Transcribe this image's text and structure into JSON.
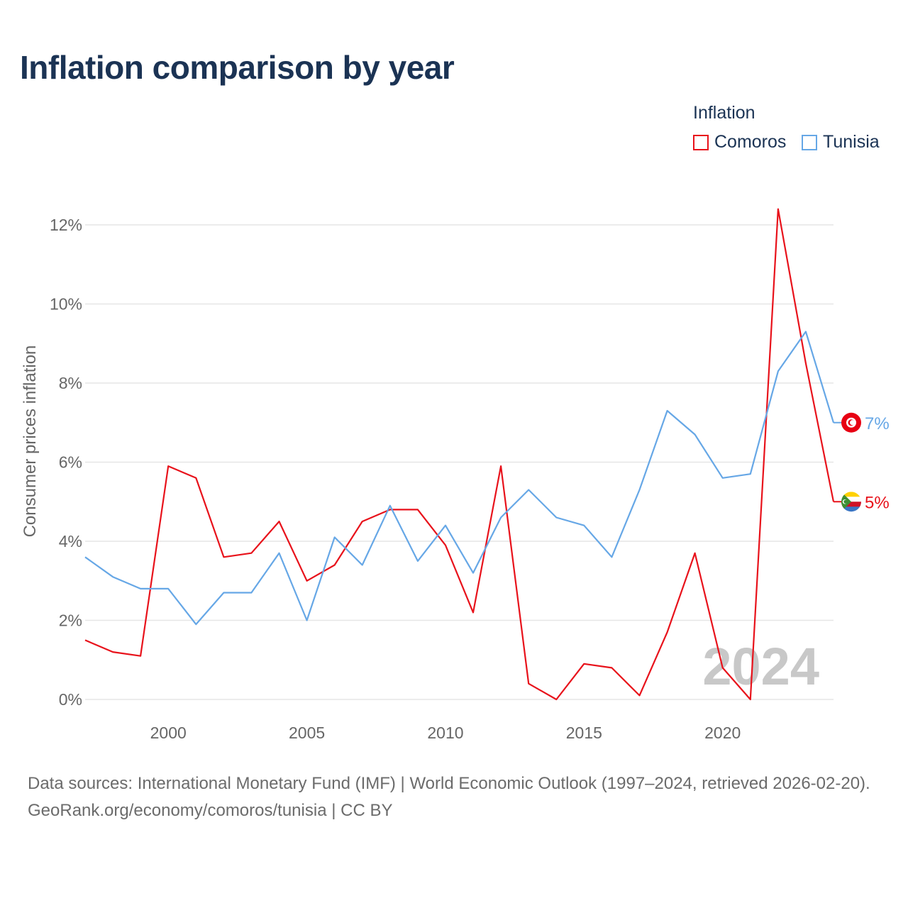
{
  "title": "Inflation comparison by year",
  "legend": {
    "title": "Inflation",
    "items": [
      {
        "label": "Comoros",
        "color": "#e8121b"
      },
      {
        "label": "Tunisia",
        "color": "#66a7e6"
      }
    ]
  },
  "footer": {
    "source": "Data sources: International Monetary Fund (IMF) | World Economic Outlook (1997–2024, retrieved 2026-02-20).",
    "credit": "GeoRank.org/economy/comoros/tunisia | CC BY"
  },
  "chart_data": {
    "type": "line",
    "title": "Inflation comparison by year",
    "ylabel": "Consumer prices inflation",
    "xlabel": "",
    "x": [
      1997,
      1998,
      1999,
      2000,
      2001,
      2002,
      2003,
      2004,
      2005,
      2006,
      2007,
      2008,
      2009,
      2010,
      2011,
      2012,
      2013,
      2014,
      2015,
      2016,
      2017,
      2018,
      2019,
      2020,
      2021,
      2022,
      2023,
      2024
    ],
    "xlim": [
      1997,
      2024
    ],
    "ylim": [
      0,
      12.5
    ],
    "xticks": [
      2000,
      2005,
      2010,
      2015,
      2020
    ],
    "yticks": [
      0,
      2,
      4,
      6,
      8,
      10,
      12
    ],
    "ytick_labels": [
      "0%",
      "2%",
      "4%",
      "6%",
      "8%",
      "10%",
      "12%"
    ],
    "grid": true,
    "year_watermark": "2024",
    "series": [
      {
        "name": "Comoros",
        "color": "#e8121b",
        "end_label": "5%",
        "values": [
          1.5,
          1.2,
          1.1,
          5.9,
          5.6,
          3.6,
          3.7,
          4.5,
          3.0,
          3.4,
          4.5,
          4.8,
          4.8,
          3.9,
          2.2,
          5.9,
          0.4,
          0.0,
          0.9,
          0.8,
          0.1,
          1.7,
          3.7,
          0.8,
          0.0,
          12.4,
          8.5,
          5.0
        ]
      },
      {
        "name": "Tunisia",
        "color": "#66a7e6",
        "end_label": "7%",
        "values": [
          3.6,
          3.1,
          2.8,
          2.8,
          1.9,
          2.7,
          2.7,
          3.7,
          2.0,
          4.1,
          3.4,
          4.9,
          3.5,
          4.4,
          3.2,
          4.6,
          5.3,
          4.6,
          4.4,
          3.6,
          5.3,
          7.3,
          6.7,
          5.6,
          5.7,
          8.3,
          9.3,
          7.0
        ]
      }
    ]
  }
}
